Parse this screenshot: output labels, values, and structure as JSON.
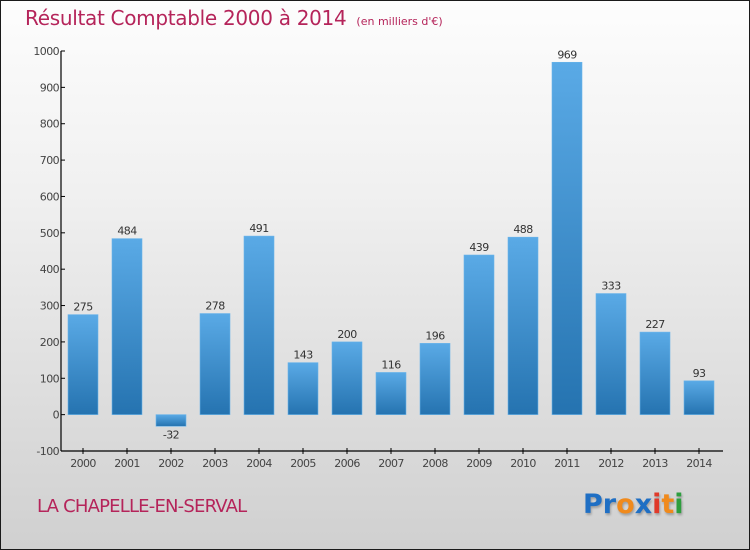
{
  "header": {
    "title": "Résultat Comptable 2000 à 2014",
    "unit": "(en milliers d'€)"
  },
  "footer": {
    "city": "LA CHAPELLE-EN-SERVAL",
    "logo": {
      "letters": [
        {
          "char": "P",
          "color": "#1f6fc4"
        },
        {
          "char": "r",
          "color": "#1f6fc4"
        },
        {
          "char": "o",
          "color": "#f08a1c"
        },
        {
          "char": "x",
          "color": "#1f6fc4"
        },
        {
          "char": "i",
          "color": "#e03a2a"
        },
        {
          "char": "t",
          "color": "#f08a1c"
        },
        {
          "char": "i",
          "color": "#2e9e3e"
        }
      ]
    }
  },
  "colors": {
    "title": "#b5245a",
    "bar_top": "#5aaae6",
    "bar_bottom": "#2573b0",
    "axis": "#000000",
    "label": "#333333"
  },
  "chart_data": {
    "type": "bar",
    "title": "Résultat Comptable 2000 à 2014 (en milliers d'€)",
    "xlabel": "",
    "ylabel": "",
    "categories": [
      "2000",
      "2001",
      "2002",
      "2003",
      "2004",
      "2005",
      "2006",
      "2007",
      "2008",
      "2009",
      "2010",
      "2011",
      "2012",
      "2013",
      "2014"
    ],
    "values": [
      275,
      484,
      -32,
      278,
      491,
      143,
      200,
      116,
      196,
      439,
      488,
      969,
      333,
      227,
      93
    ],
    "data_labels": [
      "275",
      "484",
      "-32",
      "278",
      "491",
      "143",
      "200",
      "116",
      "196",
      "439",
      "488",
      "969",
      "333",
      "227",
      "93"
    ],
    "ylim": [
      -100,
      1000
    ],
    "yticks": [
      -100,
      0,
      100,
      200,
      300,
      400,
      500,
      600,
      700,
      800,
      900,
      1000
    ],
    "ytick_labels": [
      "-100",
      "0",
      "100",
      "200",
      "300",
      "400",
      "500",
      "600",
      "700",
      "800",
      "900",
      "1000"
    ],
    "grid": false,
    "legend": "none"
  }
}
